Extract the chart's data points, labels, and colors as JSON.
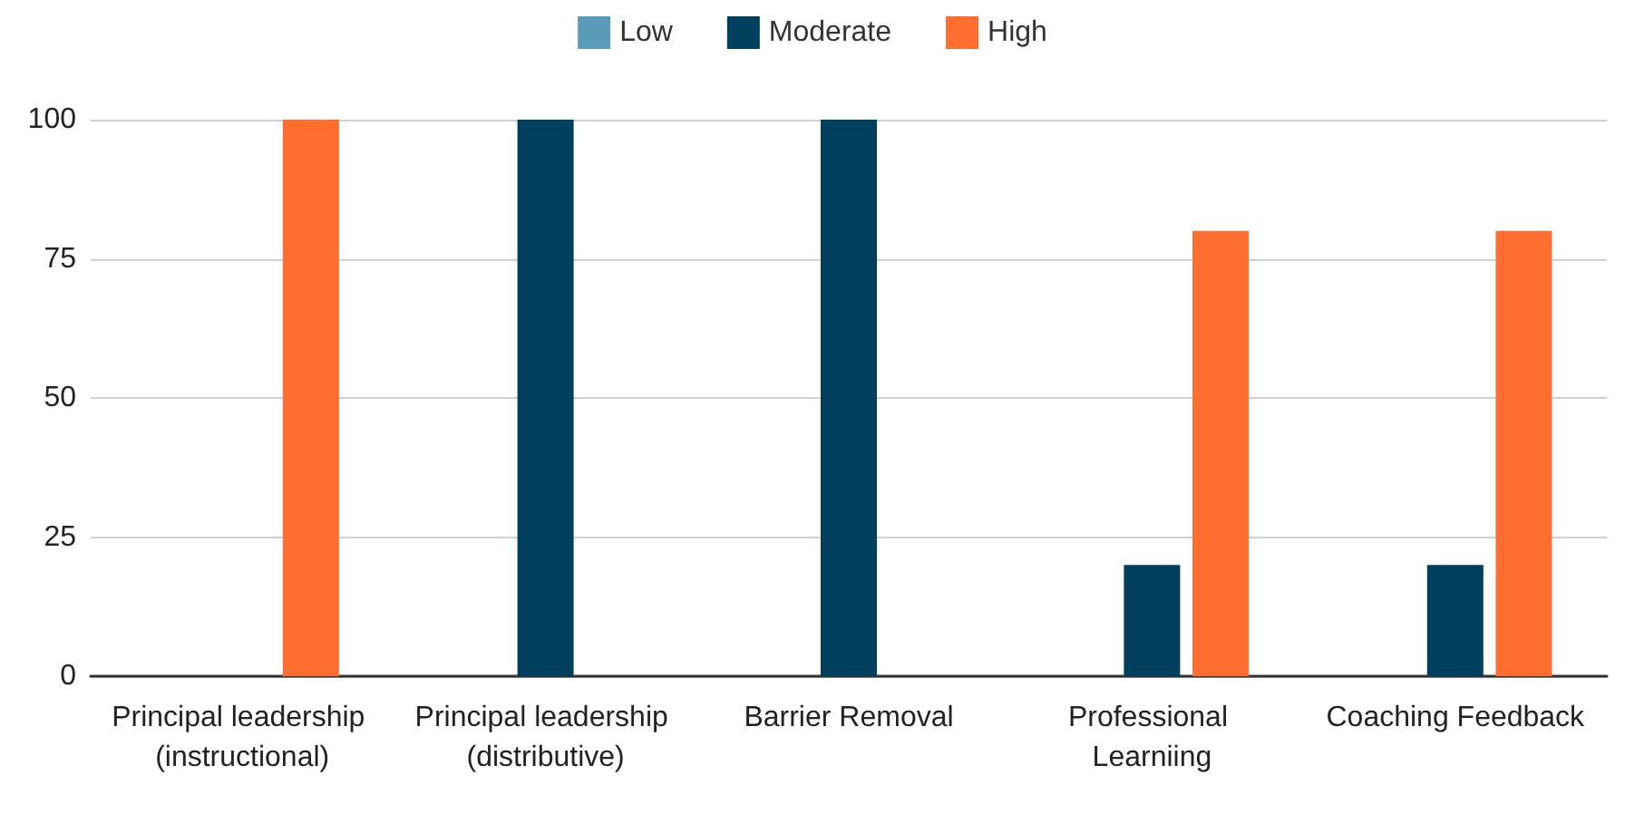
{
  "chart_data": {
    "type": "bar",
    "categories": [
      "Principal leadership (instructional)",
      "Principal leadership (distributive)",
      "Barrier Removal",
      "Professional Learniing",
      "Coaching Feedback"
    ],
    "series": [
      {
        "name": "Low",
        "color": "#5b9bba",
        "values": [
          0,
          0,
          0,
          0,
          0
        ]
      },
      {
        "name": "Moderate",
        "color": "#00405e",
        "values": [
          0,
          100,
          100,
          20,
          20
        ]
      },
      {
        "name": "High",
        "color": "#ff6d31",
        "values": [
          100,
          0,
          0,
          80,
          80
        ]
      }
    ],
    "ylim": [
      0,
      100
    ],
    "yticks": [
      0,
      25,
      50,
      75,
      100
    ],
    "grid": "y",
    "legend": "top"
  }
}
